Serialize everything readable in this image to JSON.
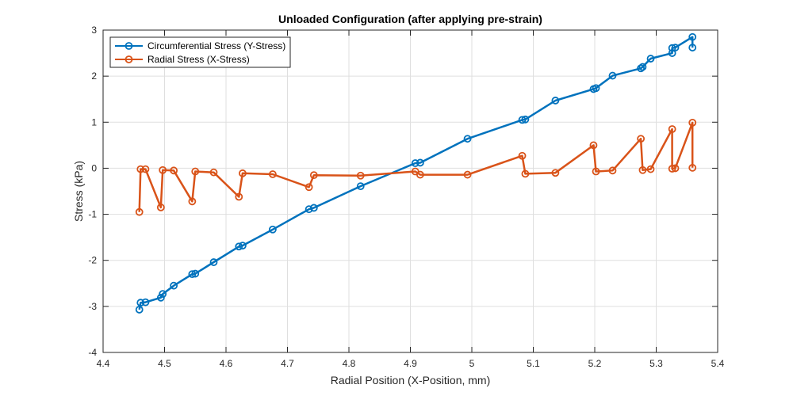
{
  "chart_data": {
    "type": "line",
    "title": "Unloaded Configuration (after applying pre-strain)",
    "xlabel": "Radial Position (X-Position, mm)",
    "ylabel": "Stress (kPa)",
    "xlim": [
      4.4,
      5.4
    ],
    "ylim": [
      -4,
      3
    ],
    "xticks": [
      "4.4",
      "4.5",
      "4.6",
      "4.7",
      "4.8",
      "4.9",
      "5",
      "5.1",
      "5.2",
      "5.3",
      "5.4"
    ],
    "yticks": [
      "-4",
      "-3",
      "-2",
      "-1",
      "0",
      "1",
      "2",
      "3"
    ],
    "grid": true,
    "legend_position": "top-left",
    "series": [
      {
        "name": "Circumferential Stress (Y-Stress)",
        "color": "#0072BD",
        "marker": "circle",
        "x": [
          5.359,
          5.359,
          5.331,
          5.326,
          5.326,
          5.291,
          5.278,
          5.275,
          5.229,
          5.202,
          5.198,
          5.136,
          5.087,
          5.082,
          4.993,
          4.916,
          4.908,
          4.819,
          4.743,
          4.735,
          4.676,
          4.627,
          4.621,
          4.58,
          4.55,
          4.545,
          4.515,
          4.497,
          4.494,
          4.469,
          4.461,
          4.459
        ],
        "y": [
          2.62,
          2.85,
          2.62,
          2.61,
          2.5,
          2.38,
          2.2,
          2.17,
          2.01,
          1.74,
          1.72,
          1.47,
          1.06,
          1.05,
          0.64,
          0.12,
          0.11,
          -0.39,
          -0.86,
          -0.89,
          -1.33,
          -1.68,
          -1.7,
          -2.04,
          -2.29,
          -2.3,
          -2.55,
          -2.73,
          -2.81,
          -2.91,
          -2.92,
          -3.07
        ]
      },
      {
        "name": "Radial Stress (X-Stress)",
        "color": "#D95319",
        "marker": "circle",
        "x": [
          4.459,
          4.461,
          4.469,
          4.494,
          4.497,
          4.515,
          4.545,
          4.55,
          4.58,
          4.621,
          4.627,
          4.676,
          4.735,
          4.743,
          4.819,
          4.908,
          4.916,
          4.993,
          5.082,
          5.087,
          5.136,
          5.198,
          5.202,
          5.229,
          5.275,
          5.278,
          5.291,
          5.326,
          5.326,
          5.331,
          5.359,
          5.359
        ],
        "y": [
          -0.95,
          -0.02,
          -0.02,
          -0.85,
          -0.04,
          -0.05,
          -0.72,
          -0.07,
          -0.09,
          -0.62,
          -0.11,
          -0.13,
          -0.41,
          -0.15,
          -0.16,
          -0.07,
          -0.14,
          -0.14,
          0.27,
          -0.12,
          -0.1,
          0.5,
          -0.07,
          -0.05,
          0.64,
          -0.04,
          -0.02,
          0.85,
          -0.01,
          0.0,
          0.99,
          0.01
        ]
      }
    ]
  }
}
